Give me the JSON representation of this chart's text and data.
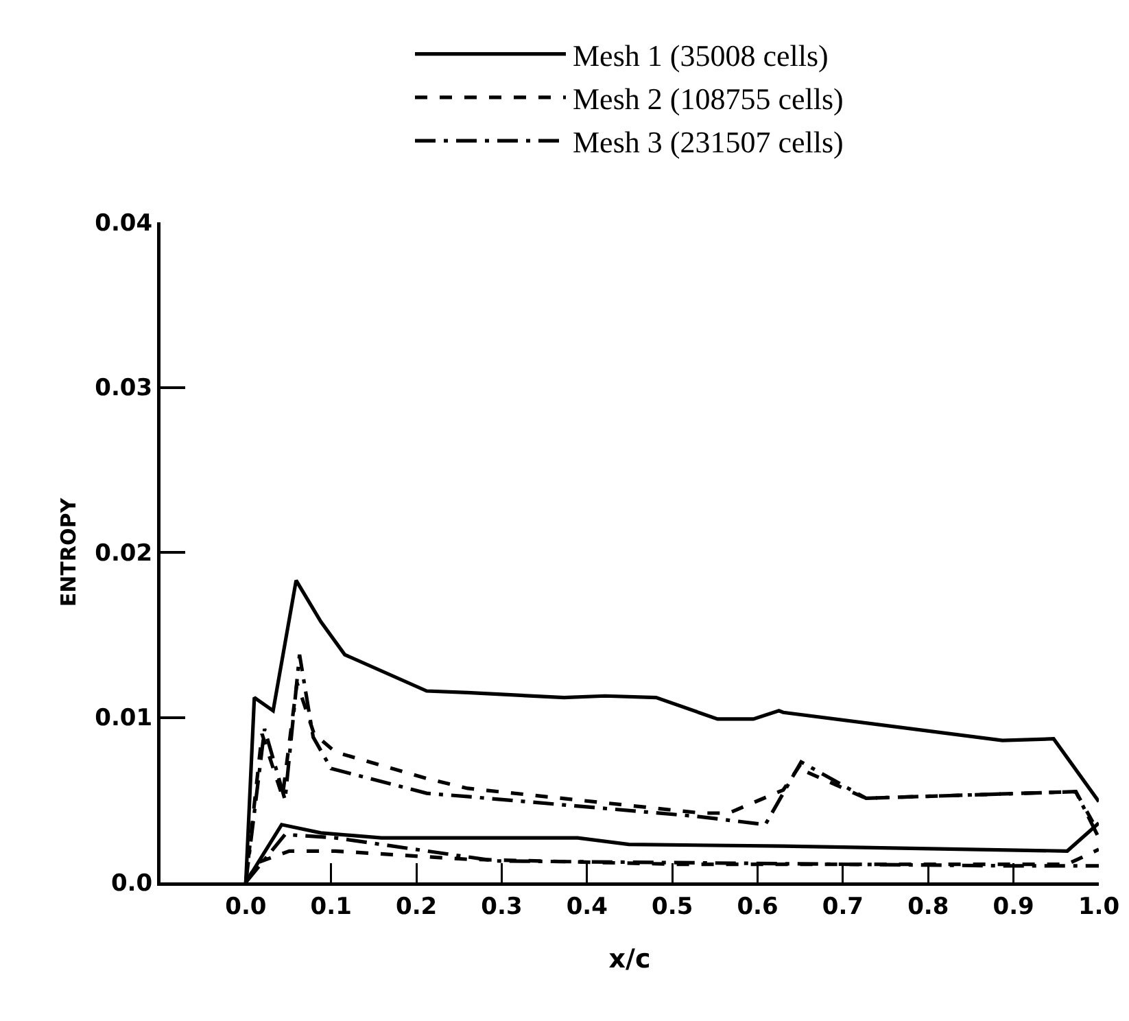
{
  "chart_data": {
    "type": "line",
    "xlabel": "x/c",
    "ylabel": "ENTROPY",
    "xlim": [
      -0.1,
      1.0
    ],
    "xticks": [
      {
        "value": 0,
        "label": "0.0"
      },
      0.1,
      0.2,
      0.3,
      0.4,
      0.5,
      0.6,
      0.7,
      0.8,
      0.9,
      {
        "value": 1,
        "label": "1.0"
      }
    ],
    "ylim": [
      0,
      0.04
    ],
    "yticks": [
      {
        "value": 0,
        "label": "0.0"
      },
      0.01,
      0.02,
      0.03,
      0.04
    ],
    "grid": false,
    "legend": "top",
    "marker": "none",
    "series": [
      {
        "name": "Mesh 1 (35008 cells)",
        "color": "#000000",
        "line_style": "solid",
        "x": [
          0,
          0.01,
          0.032,
          0.059,
          0.088,
          0.116,
          0.212,
          0.26,
          0.373,
          0.421,
          0.481,
          0.553,
          0.595,
          0.625,
          0.63,
          0.887,
          0.947,
          1.0,
          null,
          0,
          0.042,
          0.088,
          0.159,
          0.26,
          0.389,
          0.449,
          0.63,
          0.963,
          1.0
        ],
        "values": [
          0,
          0.0112,
          0.0104,
          0.0183,
          0.0158,
          0.0138,
          0.0116,
          0.0115,
          0.0112,
          0.0113,
          0.0112,
          0.0099,
          0.0099,
          0.0104,
          0.0103,
          0.0086,
          0.0087,
          0.0049,
          null,
          0,
          0.0035,
          0.003,
          0.0027,
          0.0027,
          0.0027,
          0.0023,
          0.0022,
          0.0019,
          0.0036
        ]
      },
      {
        "name": "Mesh 2 (108755 cells)",
        "color": "#000000",
        "line_style": "dashed",
        "x": [
          0,
          0.019,
          0.043,
          0.06,
          0.08,
          0.105,
          0.212,
          0.26,
          0.534,
          0.566,
          0.63,
          0.651,
          0.657,
          0.727,
          0.973,
          1.0,
          null,
          0,
          0.014,
          0.051,
          0.105,
          0.26,
          0.502,
          0.63,
          0.963,
          1.0
        ],
        "values": [
          0,
          0.009,
          0.0052,
          0.0121,
          0.009,
          0.0079,
          0.0063,
          0.0057,
          0.0042,
          0.0042,
          0.0056,
          0.0072,
          0.0067,
          0.0051,
          0.0055,
          0.003,
          null,
          0,
          0.0012,
          0.0019,
          0.0019,
          0.0014,
          0.0011,
          0.0011,
          0.0011,
          0.002
        ]
      },
      {
        "name": "Mesh 3 (231507 cells)",
        "color": "#000000",
        "line_style": "dashdot",
        "x": [
          0,
          0.022,
          0.046,
          0.063,
          0.079,
          0.1,
          0.212,
          0.26,
          0.529,
          0.609,
          0.651,
          0.727,
          0.973,
          1.0,
          null,
          0,
          0.046,
          0.105,
          0.293,
          0.5,
          0.9,
          1.0
        ],
        "values": [
          0,
          0.0093,
          0.005,
          0.0138,
          0.0088,
          0.0069,
          0.0054,
          0.0052,
          0.004,
          0.0035,
          0.0073,
          0.0051,
          0.0055,
          0.0027,
          null,
          0,
          0.0029,
          0.0027,
          0.0013,
          0.0012,
          0.001,
          0.001
        ]
      }
    ]
  }
}
